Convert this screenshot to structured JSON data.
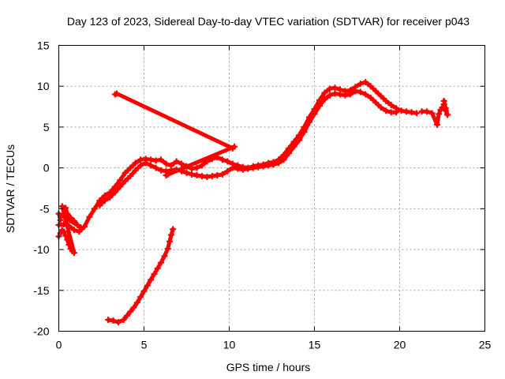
{
  "chart_data": {
    "type": "scatter",
    "title": "Day 123 of 2023, Sidereal Day-to-day VTEC variation (SDTVAR) for receiver p043",
    "xlabel": "GPS time / hours",
    "ylabel": "SDTVAR / TECUs",
    "xlim": [
      0,
      25
    ],
    "ylim": [
      -20,
      15
    ],
    "xticks": [
      0,
      5,
      10,
      15,
      20,
      25
    ],
    "xtick_labels": [
      "0",
      "5",
      "10",
      "15",
      "20",
      "25"
    ],
    "yticks": [
      -20,
      -15,
      -10,
      -5,
      0,
      5,
      10,
      15
    ],
    "ytick_labels": [
      "-20",
      "-15",
      "-10",
      "-5",
      "0",
      "5",
      "10",
      "15"
    ],
    "grid": true,
    "marker_color": "#ff0000",
    "series": [
      {
        "name": "arc-main-upper",
        "points": [
          [
            0.0,
            -7.0
          ],
          [
            0.3,
            -6.9
          ],
          [
            0.6,
            -7.1
          ],
          [
            0.9,
            -7.6
          ],
          [
            1.2,
            -7.8
          ],
          [
            1.5,
            -7.2
          ],
          [
            1.8,
            -6.0
          ],
          [
            2.1,
            -5.0
          ],
          [
            2.4,
            -4.0
          ],
          [
            2.7,
            -3.4
          ],
          [
            3.0,
            -3.0
          ],
          [
            3.3,
            -2.3
          ],
          [
            3.6,
            -1.5
          ],
          [
            3.9,
            -0.6
          ],
          [
            4.2,
            0.0
          ],
          [
            4.5,
            0.6
          ],
          [
            4.8,
            1.0
          ],
          [
            5.1,
            1.1
          ],
          [
            5.4,
            1.0
          ],
          [
            5.7,
            0.9
          ],
          [
            6.0,
            1.0
          ],
          [
            6.3,
            0.5
          ],
          [
            6.6,
            0.3
          ],
          [
            6.9,
            0.8
          ],
          [
            7.2,
            0.5
          ],
          [
            7.5,
            0.2
          ],
          [
            7.8,
            -0.1
          ],
          [
            8.1,
            0.0
          ],
          [
            8.4,
            0.3
          ],
          [
            8.7,
            0.8
          ],
          [
            9.0,
            1.1
          ],
          [
            9.3,
            1.3
          ],
          [
            9.6,
            1.0
          ],
          [
            9.9,
            0.8
          ],
          [
            10.2,
            0.5
          ],
          [
            10.5,
            0.3
          ],
          [
            10.8,
            0.1
          ],
          [
            11.1,
            0.0
          ],
          [
            11.4,
            0.2
          ],
          [
            11.7,
            0.3
          ],
          [
            12.0,
            0.4
          ],
          [
            12.3,
            0.6
          ],
          [
            12.6,
            0.7
          ],
          [
            12.9,
            1.0
          ],
          [
            13.2,
            1.6
          ],
          [
            13.5,
            2.4
          ],
          [
            13.8,
            3.2
          ],
          [
            14.1,
            4.0
          ],
          [
            14.4,
            5.0
          ],
          [
            14.7,
            6.2
          ],
          [
            15.0,
            7.2
          ],
          [
            15.3,
            8.3
          ],
          [
            15.6,
            9.2
          ],
          [
            15.9,
            9.7
          ],
          [
            16.2,
            9.8
          ],
          [
            16.5,
            9.6
          ],
          [
            16.8,
            9.4
          ],
          [
            17.1,
            9.5
          ],
          [
            17.4,
            9.9
          ],
          [
            17.7,
            10.3
          ],
          [
            18.0,
            10.5
          ],
          [
            18.3,
            10.0
          ],
          [
            18.6,
            9.4
          ],
          [
            18.9,
            8.8
          ],
          [
            19.2,
            8.2
          ],
          [
            19.5,
            7.7
          ],
          [
            19.8,
            7.3
          ],
          [
            20.1,
            7.0
          ],
          [
            20.4,
            6.9
          ],
          [
            20.7,
            6.8
          ],
          [
            21.0,
            6.7
          ]
        ]
      },
      {
        "name": "arc-main-lower",
        "points": [
          [
            2.4,
            -4.6
          ],
          [
            2.7,
            -4.0
          ],
          [
            3.0,
            -3.6
          ],
          [
            3.3,
            -3.0
          ],
          [
            3.6,
            -2.3
          ],
          [
            3.9,
            -1.6
          ],
          [
            4.2,
            -1.0
          ],
          [
            4.5,
            -0.3
          ],
          [
            4.8,
            0.3
          ],
          [
            5.1,
            0.6
          ],
          [
            5.4,
            0.3
          ],
          [
            5.7,
            0.0
          ],
          [
            6.0,
            -0.3
          ],
          [
            6.3,
            -0.4
          ],
          [
            6.6,
            -0.3
          ],
          [
            6.9,
            -0.2
          ],
          [
            7.2,
            -0.4
          ],
          [
            7.5,
            -0.6
          ],
          [
            7.8,
            -0.8
          ],
          [
            8.1,
            -0.9
          ],
          [
            8.4,
            -1.0
          ],
          [
            8.7,
            -1.1
          ],
          [
            9.0,
            -1.0
          ],
          [
            9.3,
            -0.9
          ],
          [
            9.6,
            -0.8
          ],
          [
            9.9,
            -0.4
          ],
          [
            10.2,
            0.0
          ],
          [
            10.5,
            -0.1
          ],
          [
            10.8,
            -0.2
          ],
          [
            11.1,
            -0.1
          ],
          [
            11.4,
            0.0
          ],
          [
            11.7,
            0.1
          ],
          [
            12.0,
            0.2
          ],
          [
            12.3,
            0.3
          ],
          [
            12.6,
            0.4
          ],
          [
            12.9,
            0.6
          ],
          [
            13.2,
            1.0
          ],
          [
            13.5,
            1.8
          ],
          [
            13.8,
            2.6
          ],
          [
            14.1,
            3.4
          ],
          [
            14.4,
            4.4
          ],
          [
            14.7,
            5.6
          ],
          [
            15.0,
            6.6
          ],
          [
            15.3,
            7.6
          ],
          [
            15.6,
            8.4
          ],
          [
            15.9,
            8.9
          ],
          [
            16.2,
            9.1
          ],
          [
            16.5,
            9.0
          ],
          [
            16.8,
            8.9
          ],
          [
            17.1,
            9.0
          ],
          [
            17.4,
            9.4
          ],
          [
            17.7,
            9.3
          ],
          [
            18.0,
            9.0
          ],
          [
            18.3,
            8.6
          ],
          [
            18.6,
            8.0
          ],
          [
            18.9,
            7.4
          ],
          [
            19.2,
            7.0
          ],
          [
            19.5,
            6.8
          ],
          [
            19.8,
            6.8
          ]
        ]
      },
      {
        "name": "arc-early-spur",
        "points": [
          [
            0.0,
            -8.4
          ],
          [
            0.1,
            -8.0
          ],
          [
            0.2,
            -7.6
          ],
          [
            0.3,
            -7.8
          ],
          [
            0.4,
            -8.3
          ],
          [
            0.5,
            -8.8
          ],
          [
            0.6,
            -9.4
          ],
          [
            0.7,
            -9.9
          ],
          [
            0.8,
            -10.2
          ],
          [
            0.9,
            -10.4
          ],
          [
            0.2,
            -4.7
          ],
          [
            0.4,
            -4.9
          ],
          [
            0.5,
            -5.6
          ],
          [
            0.7,
            -6.1
          ],
          [
            0.9,
            -6.5
          ],
          [
            1.1,
            -7.0
          ],
          [
            1.3,
            -7.3
          ],
          [
            0.0,
            -5.6
          ],
          [
            0.1,
            -6.4
          ]
        ]
      },
      {
        "name": "arc-lower-rising",
        "points": [
          [
            2.9,
            -18.6
          ],
          [
            3.2,
            -18.7
          ],
          [
            3.5,
            -18.9
          ],
          [
            3.8,
            -18.6
          ],
          [
            4.0,
            -18.1
          ],
          [
            4.2,
            -17.6
          ],
          [
            4.4,
            -17.1
          ],
          [
            4.6,
            -16.5
          ],
          [
            4.8,
            -15.8
          ],
          [
            5.0,
            -15.1
          ],
          [
            5.2,
            -14.4
          ],
          [
            5.4,
            -13.7
          ],
          [
            5.6,
            -13.0
          ],
          [
            5.8,
            -12.3
          ],
          [
            6.0,
            -11.6
          ],
          [
            6.2,
            -10.8
          ],
          [
            6.4,
            -9.9
          ],
          [
            6.5,
            -9.0
          ],
          [
            6.6,
            -8.2
          ],
          [
            6.7,
            -7.5
          ]
        ]
      },
      {
        "name": "arc-late",
        "points": [
          [
            21.3,
            6.9
          ],
          [
            21.6,
            6.9
          ],
          [
            21.9,
            6.7
          ],
          [
            22.2,
            5.3
          ],
          [
            22.3,
            6.6
          ],
          [
            22.4,
            7.1
          ],
          [
            22.5,
            7.4
          ],
          [
            22.6,
            7.8
          ],
          [
            22.7,
            7.0
          ],
          [
            22.8,
            6.5
          ],
          [
            22.7,
            7.3
          ],
          [
            22.6,
            8.2
          ]
        ]
      },
      {
        "name": "isolated",
        "points": [
          [
            3.3,
            9.0
          ],
          [
            3.4,
            9.1
          ],
          [
            10.2,
            2.4
          ],
          [
            10.3,
            2.6
          ],
          [
            6.3,
            -0.9
          ],
          [
            6.4,
            -0.8
          ]
        ]
      }
    ]
  }
}
